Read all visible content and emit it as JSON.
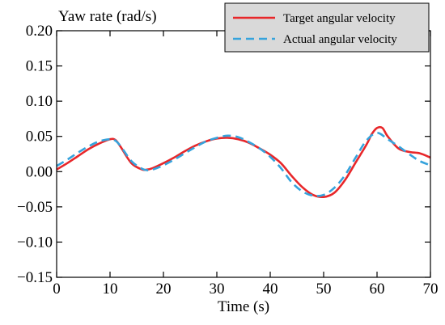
{
  "chart_data": {
    "type": "line",
    "title": "",
    "ylabel": "Yaw rate (rad/s)",
    "xlabel": "Time (s)",
    "xlim": [
      0,
      70
    ],
    "ylim": [
      -0.15,
      0.2
    ],
    "x_ticks": [
      0,
      10,
      20,
      30,
      40,
      50,
      60,
      70
    ],
    "x_tick_labels": [
      "0",
      "10",
      "20",
      "30",
      "40",
      "50",
      "60",
      "70"
    ],
    "y_ticks": [
      -0.15,
      -0.1,
      -0.05,
      0.0,
      0.05,
      0.1,
      0.15,
      0.2
    ],
    "y_tick_labels": [
      "−0.15",
      "−0.10",
      "−0.05",
      "0.00",
      "0.05",
      "0.10",
      "0.15",
      "0.20"
    ],
    "grid": false,
    "legend_position": "top-right",
    "series": [
      {
        "name": "Target angular velocity",
        "color": "#e8272a",
        "dash": "solid",
        "x": [
          0,
          2,
          4,
          6,
          8,
          10,
          11,
          12,
          14,
          16,
          17,
          18,
          20,
          22,
          24,
          26,
          28,
          30,
          32,
          34,
          36,
          38,
          40,
          42,
          44,
          46,
          48,
          50,
          52,
          54,
          56,
          58,
          59,
          60,
          61,
          62,
          64,
          66,
          68,
          70
        ],
        "y": [
          0.003,
          0.012,
          0.022,
          0.032,
          0.04,
          0.046,
          0.045,
          0.035,
          0.012,
          0.003,
          0.003,
          0.005,
          0.012,
          0.02,
          0.029,
          0.037,
          0.043,
          0.047,
          0.048,
          0.046,
          0.041,
          0.033,
          0.024,
          0.012,
          -0.006,
          -0.022,
          -0.033,
          -0.036,
          -0.03,
          -0.012,
          0.013,
          0.038,
          0.053,
          0.062,
          0.062,
          0.05,
          0.033,
          0.028,
          0.026,
          0.02
        ]
      },
      {
        "name": "Actual angular velocity",
        "color": "#36a3dc",
        "dash": "dashed",
        "x": [
          0,
          2,
          4,
          6,
          8,
          10,
          11,
          12,
          14,
          16,
          17,
          18,
          20,
          22,
          24,
          26,
          28,
          30,
          32,
          34,
          36,
          38,
          40,
          42,
          44,
          46,
          48,
          50,
          52,
          54,
          56,
          58,
          60,
          62,
          64,
          66,
          68,
          70
        ],
        "y": [
          0.008,
          0.017,
          0.027,
          0.036,
          0.043,
          0.046,
          0.044,
          0.036,
          0.015,
          0.004,
          0.002,
          0.003,
          0.009,
          0.017,
          0.026,
          0.035,
          0.043,
          0.048,
          0.051,
          0.049,
          0.042,
          0.033,
          0.021,
          0.005,
          -0.015,
          -0.028,
          -0.034,
          -0.033,
          -0.023,
          -0.005,
          0.02,
          0.044,
          0.055,
          0.046,
          0.036,
          0.025,
          0.015,
          0.009
        ]
      }
    ]
  }
}
